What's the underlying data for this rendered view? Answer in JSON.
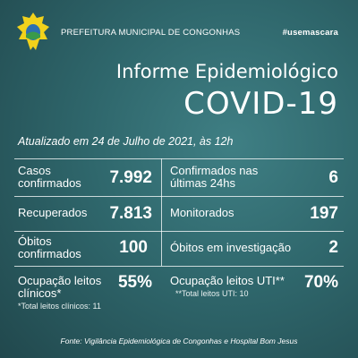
{
  "header": {
    "organization": "PREFEITURA MUNICIPAL DE CONGONHAS",
    "hashtag": "#usemascara"
  },
  "title": "Informe Epidemiológico",
  "subtitle": "COVID-19",
  "updated": "Atualizado em 24 de Julho de 2021, às 12h",
  "stats": [
    [
      {
        "label": "Casos confirmados",
        "value": "7.992"
      },
      {
        "label": "Confirmados nas últimas 24hs",
        "value": "6"
      }
    ],
    [
      {
        "label": "Recuperados",
        "value": "7.813"
      },
      {
        "label": "Monitorados",
        "value": "197"
      }
    ],
    [
      {
        "label": "Óbitos confirmados",
        "value": "100"
      },
      {
        "label": "Óbitos em investigação",
        "value": "2"
      }
    ],
    [
      {
        "label": "Ocupação leitos clínicos*",
        "value": "55%",
        "note": "*Total leitos clínicos: 11"
      },
      {
        "label": "Ocupação leitos UTI**",
        "value": "70%",
        "note": "**Total leitos UTI: 10"
      }
    ]
  ],
  "footer": "Fonte: Vigilância Epidemiológica de Congonhas e Hospital Bom Jesus"
}
